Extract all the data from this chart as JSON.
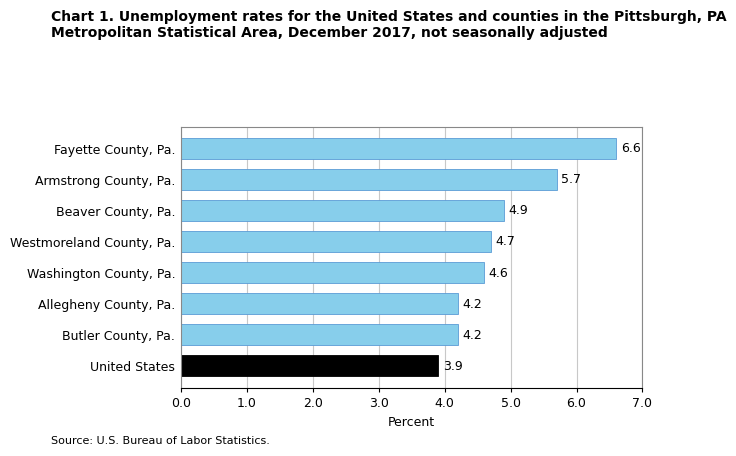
{
  "title_line1": "Chart 1. Unemployment rates for the United States and counties in the Pittsburgh, PA",
  "title_line2": "Metropolitan Statistical Area, December 2017, not seasonally adjusted",
  "categories": [
    "United States",
    "Butler County, Pa.",
    "Allegheny County, Pa.",
    "Washington County, Pa.",
    "Westmoreland County, Pa.",
    "Beaver County, Pa.",
    "Armstrong County, Pa.",
    "Fayette County, Pa."
  ],
  "values": [
    3.9,
    4.2,
    4.2,
    4.6,
    4.7,
    4.9,
    5.7,
    6.6
  ],
  "bar_colors": [
    "#000000",
    "#87CEEB",
    "#87CEEB",
    "#87CEEB",
    "#87CEEB",
    "#87CEEB",
    "#87CEEB",
    "#87CEEB"
  ],
  "xlim": [
    0.0,
    7.0
  ],
  "xticks": [
    0.0,
    1.0,
    2.0,
    3.0,
    4.0,
    5.0,
    6.0,
    7.0
  ],
  "xlabel": "Percent",
  "source": "Source: U.S. Bureau of Labor Statistics.",
  "title_fontsize": 10,
  "tick_fontsize": 9,
  "label_fontsize": 9,
  "source_fontsize": 8,
  "bar_light_edge": "#5b9bd5",
  "grid_color": "#c8c8c8",
  "background_color": "#ffffff",
  "bar_height": 0.65
}
